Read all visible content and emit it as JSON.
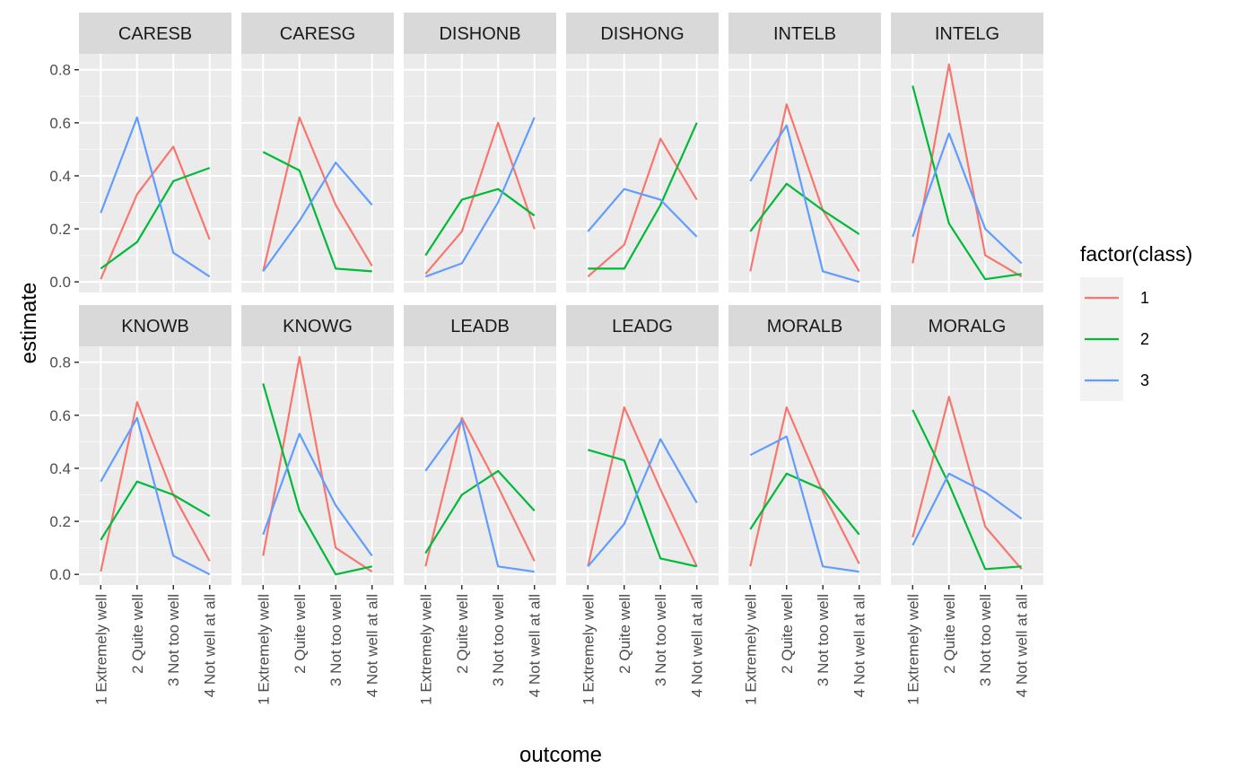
{
  "chart_data": {
    "type": "line",
    "xlabel": "outcome",
    "ylabel": "estimate",
    "categories": [
      "1 Extremely well",
      "2 Quite well",
      "3 Not too well",
      "4 Not well at all"
    ],
    "ylim": [
      -0.04,
      0.86
    ],
    "yticks": [
      0.0,
      0.2,
      0.4,
      0.6,
      0.8
    ],
    "ytick_labels": [
      "0.0",
      "0.2",
      "0.4",
      "0.6",
      "0.8"
    ],
    "grid": true,
    "legend": {
      "title": "factor(class)",
      "position": "right",
      "entries": [
        {
          "label": "1",
          "color": "#F8766D"
        },
        {
          "label": "2",
          "color": "#00BA38"
        },
        {
          "label": "3",
          "color": "#619CFF"
        }
      ]
    },
    "facets": [
      {
        "name": "CARESB",
        "series": [
          [
            0.01,
            0.33,
            0.51,
            0.16
          ],
          [
            0.05,
            0.15,
            0.38,
            0.43
          ],
          [
            0.26,
            0.62,
            0.11,
            0.02
          ]
        ]
      },
      {
        "name": "CARESG",
        "series": [
          [
            0.04,
            0.62,
            0.29,
            0.06
          ],
          [
            0.49,
            0.42,
            0.05,
            0.04
          ],
          [
            0.04,
            0.23,
            0.45,
            0.29
          ]
        ]
      },
      {
        "name": "DISHONB",
        "series": [
          [
            0.03,
            0.19,
            0.6,
            0.2
          ],
          [
            0.1,
            0.31,
            0.35,
            0.25
          ],
          [
            0.02,
            0.07,
            0.3,
            0.62
          ]
        ]
      },
      {
        "name": "DISHONG",
        "series": [
          [
            0.02,
            0.14,
            0.54,
            0.31
          ],
          [
            0.05,
            0.05,
            0.29,
            0.6
          ],
          [
            0.19,
            0.35,
            0.31,
            0.17
          ]
        ]
      },
      {
        "name": "INTELB",
        "series": [
          [
            0.04,
            0.67,
            0.27,
            0.04
          ],
          [
            0.19,
            0.37,
            0.27,
            0.18
          ],
          [
            0.38,
            0.59,
            0.04,
            0.0
          ]
        ]
      },
      {
        "name": "INTELG",
        "series": [
          [
            0.07,
            0.82,
            0.1,
            0.02
          ],
          [
            0.74,
            0.22,
            0.01,
            0.03
          ],
          [
            0.17,
            0.56,
            0.2,
            0.07
          ]
        ]
      },
      {
        "name": "KNOWB",
        "series": [
          [
            0.01,
            0.65,
            0.3,
            0.05
          ],
          [
            0.13,
            0.35,
            0.3,
            0.22
          ],
          [
            0.35,
            0.59,
            0.07,
            0.0
          ]
        ]
      },
      {
        "name": "KNOWG",
        "series": [
          [
            0.07,
            0.82,
            0.1,
            0.01
          ],
          [
            0.72,
            0.24,
            0.0,
            0.03
          ],
          [
            0.15,
            0.53,
            0.26,
            0.07
          ]
        ]
      },
      {
        "name": "LEADB",
        "series": [
          [
            0.03,
            0.59,
            0.33,
            0.05
          ],
          [
            0.08,
            0.3,
            0.39,
            0.24
          ],
          [
            0.39,
            0.58,
            0.03,
            0.01
          ]
        ]
      },
      {
        "name": "LEADG",
        "series": [
          [
            0.03,
            0.63,
            0.32,
            0.03
          ],
          [
            0.47,
            0.43,
            0.06,
            0.03
          ],
          [
            0.03,
            0.19,
            0.51,
            0.27
          ]
        ]
      },
      {
        "name": "MORALB",
        "series": [
          [
            0.03,
            0.63,
            0.31,
            0.04
          ],
          [
            0.17,
            0.38,
            0.32,
            0.15
          ],
          [
            0.45,
            0.52,
            0.03,
            0.01
          ]
        ]
      },
      {
        "name": "MORALG",
        "series": [
          [
            0.14,
            0.67,
            0.18,
            0.02
          ],
          [
            0.62,
            0.34,
            0.02,
            0.03
          ],
          [
            0.11,
            0.38,
            0.31,
            0.21
          ]
        ]
      }
    ]
  }
}
